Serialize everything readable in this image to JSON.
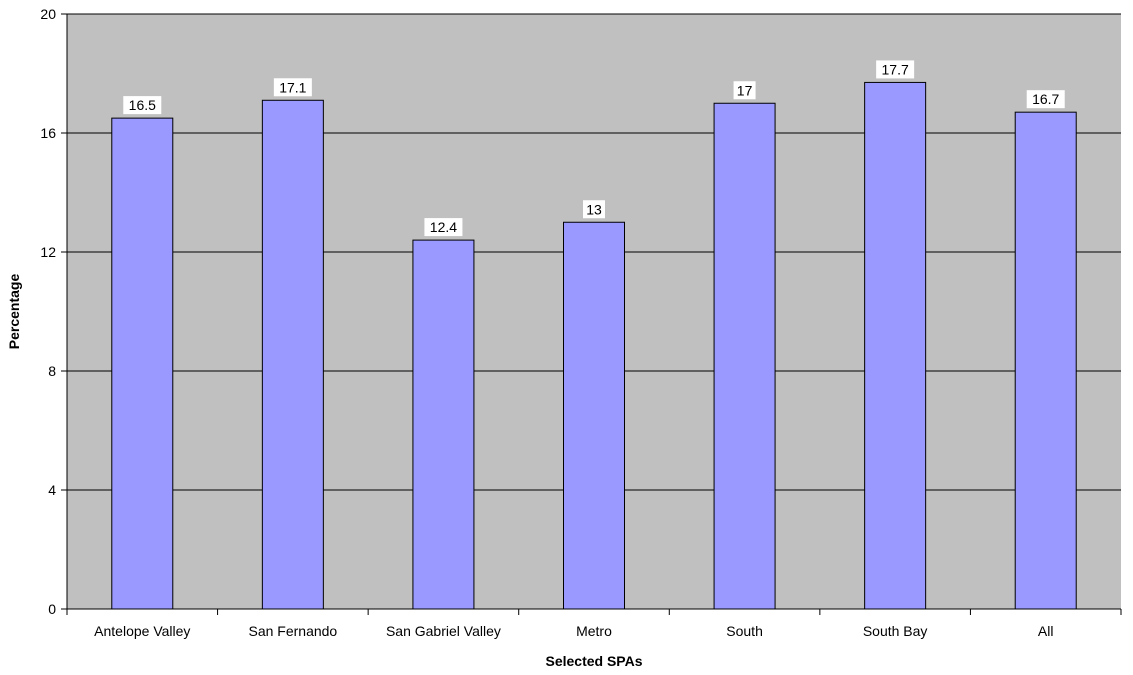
{
  "chart_data": {
    "type": "bar",
    "title": "",
    "xlabel": "Selected SPAs",
    "ylabel": "Percentage",
    "categories": [
      "Antelope Valley",
      "San Fernando",
      "San Gabriel Valley",
      "Metro",
      "South",
      "South Bay",
      "All"
    ],
    "values": [
      16.5,
      17.1,
      12.4,
      13,
      17,
      17.7,
      16.7
    ],
    "value_labels": [
      "16.5",
      "17.1",
      "12.4",
      "13",
      "17",
      "17.7",
      "16.7"
    ],
    "ylim": [
      0,
      20
    ],
    "yticks": [
      0,
      4,
      8,
      12,
      16,
      20
    ],
    "ytick_labels": [
      "0",
      "4",
      "8",
      "12",
      "16",
      "20"
    ],
    "grid": true,
    "legend": "none",
    "colors": {
      "plot_background": "#c0c0c0",
      "bar_fill": "#9999ff",
      "bar_stroke": "#000000",
      "gridline": "#000000",
      "label_box": "#ffffff"
    }
  }
}
